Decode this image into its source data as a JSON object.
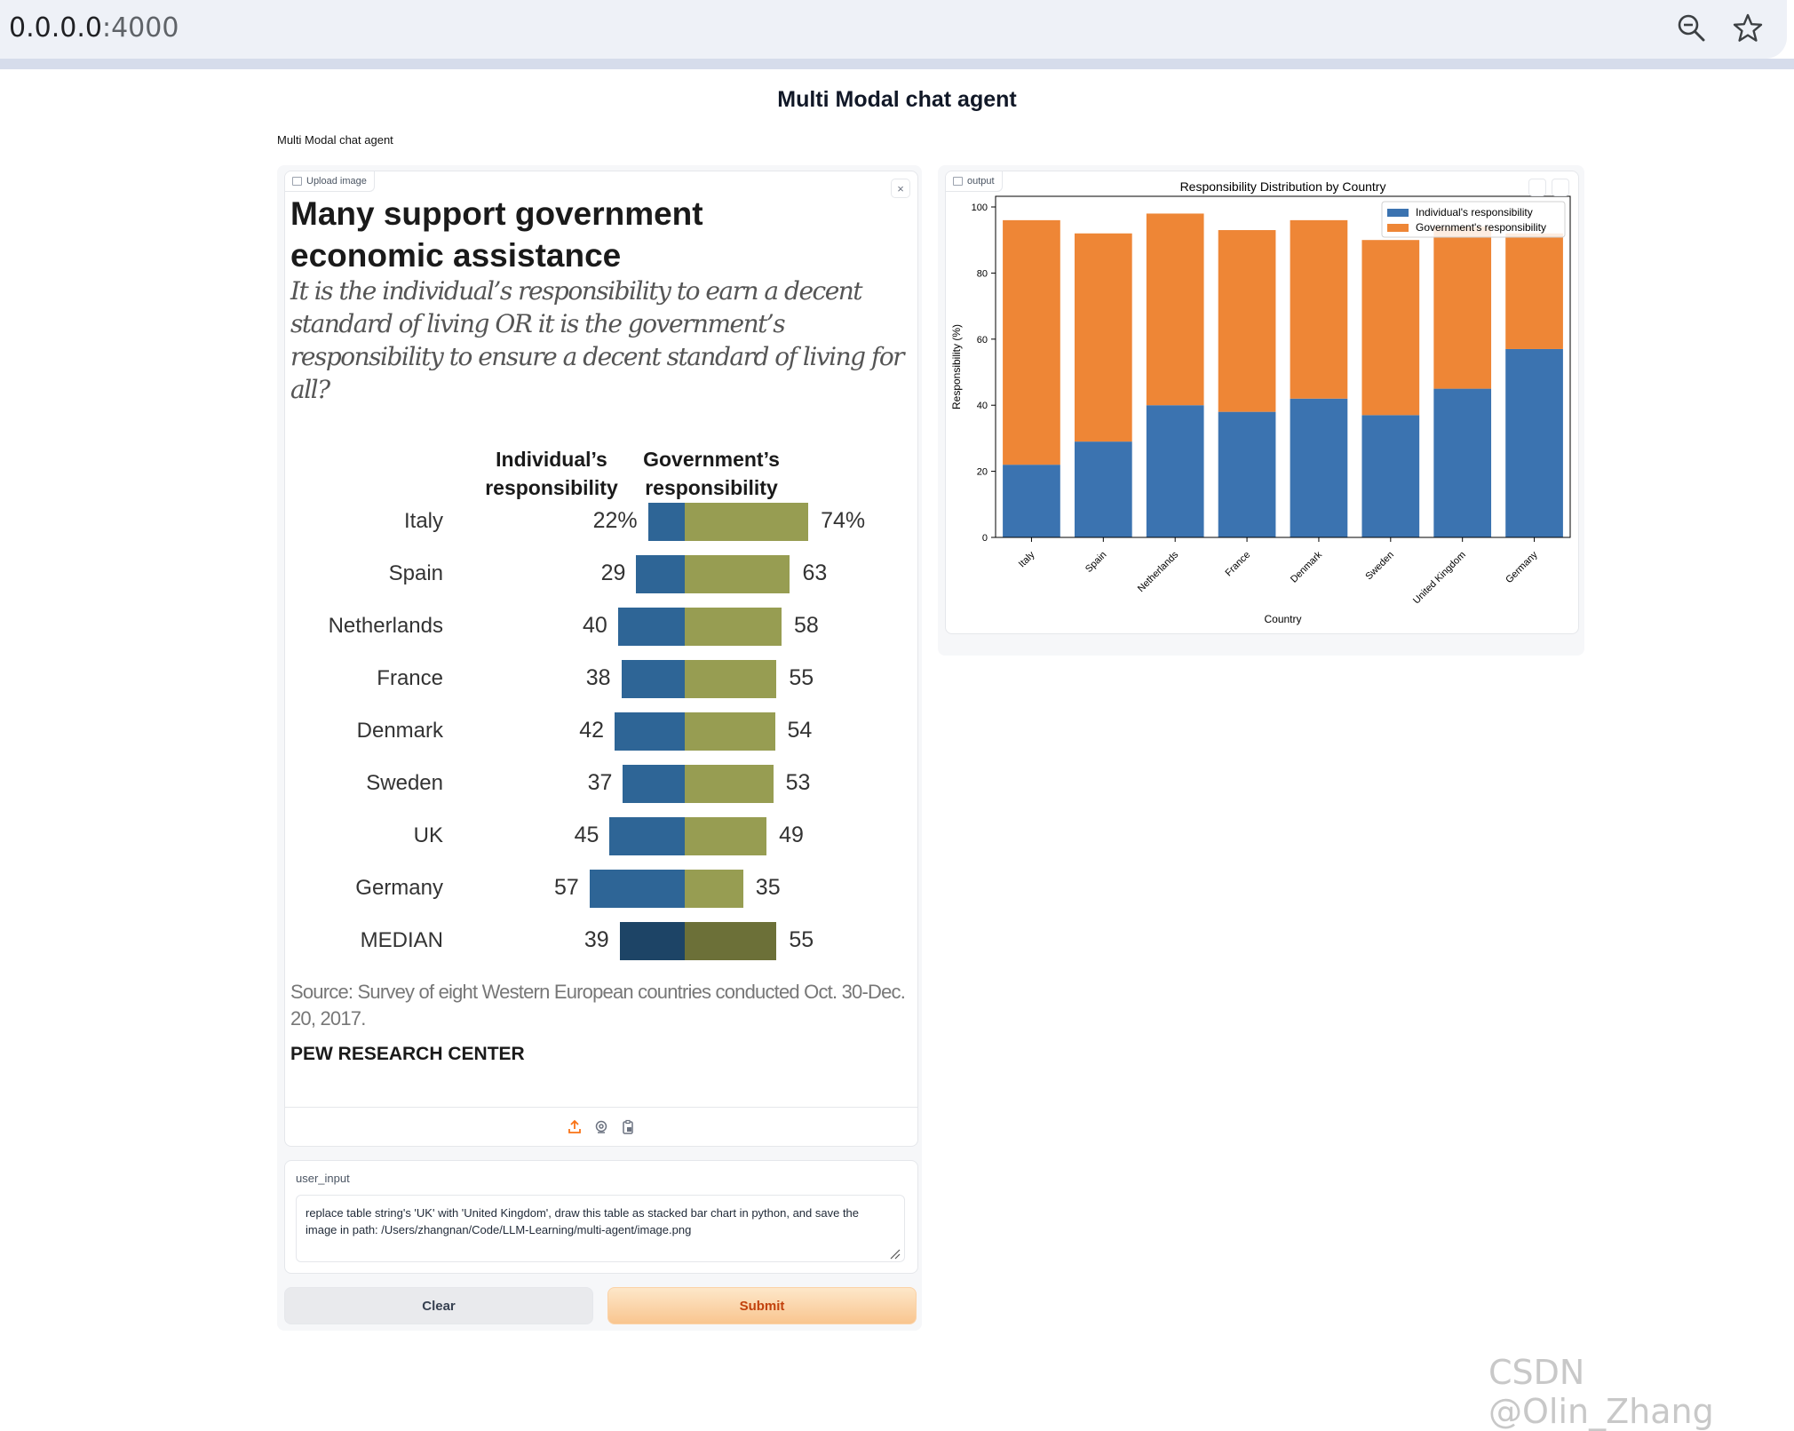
{
  "browser": {
    "url_host": "0.0.0.0",
    "url_port": ":4000",
    "zoom_icon": "magnifier-minus-icon",
    "star_icon": "star-outline-icon"
  },
  "page": {
    "title": "Multi Modal chat agent",
    "subtitle": "Multi Modal chat agent"
  },
  "upload_panel": {
    "label": "Upload image",
    "close_glyph": "×",
    "toolbar_icons": [
      "upload-icon",
      "webcam-icon",
      "clipboard-icon"
    ],
    "pew_image": {
      "title": "Many support government economic assistance",
      "subtitle": "It is the individual’s responsibility to earn a decent standard of living OR it is the government’s responsibility to ensure a decent standard of living for all?",
      "col_individual": "Individual’s responsibility",
      "col_government": "Government’s responsibility",
      "rows": [
        {
          "country": "Italy",
          "individual": 22,
          "individual_label": "22%",
          "government": 74,
          "government_label": "74%"
        },
        {
          "country": "Spain",
          "individual": 29,
          "individual_label": "29",
          "government": 63,
          "government_label": "63"
        },
        {
          "country": "Netherlands",
          "individual": 40,
          "individual_label": "40",
          "government": 58,
          "government_label": "58"
        },
        {
          "country": "France",
          "individual": 38,
          "individual_label": "38",
          "government": 55,
          "government_label": "55"
        },
        {
          "country": "Denmark",
          "individual": 42,
          "individual_label": "42",
          "government": 54,
          "government_label": "54"
        },
        {
          "country": "Sweden",
          "individual": 37,
          "individual_label": "37",
          "government": 53,
          "government_label": "53"
        },
        {
          "country": "UK",
          "individual": 45,
          "individual_label": "45",
          "government": 49,
          "government_label": "49"
        },
        {
          "country": "Germany",
          "individual": 57,
          "individual_label": "57",
          "government": 35,
          "government_label": "35"
        },
        {
          "country": "MEDIAN",
          "individual": 39,
          "individual_label": "39",
          "government": 55,
          "government_label": "55",
          "median": true
        }
      ],
      "colors": {
        "individual": "#2e6596",
        "government": "#979d52",
        "individual_median": "#1d4466",
        "government_median": "#6c7038"
      },
      "source": "Source: Survey of eight Western European countries conducted Oct. 30-Dec. 20, 2017.",
      "brand": "PEW RESEARCH CENTER"
    }
  },
  "user_input": {
    "label": "user_input",
    "value_line1": "replace table string's 'UK' with 'United Kingdom', draw this table as stacked bar chart in python, and save the",
    "value_line2": "image in path: /Users/zhangnan/Code/LLM-Learning/multi-agent/image.png"
  },
  "buttons": {
    "clear": "Clear",
    "submit": "Submit"
  },
  "output_panel": {
    "label": "output",
    "tool_icons": [
      "fullscreen-icon",
      "download-icon"
    ]
  },
  "chart_data": {
    "type": "bar",
    "stacked": true,
    "title": "Responsibility Distribution by Country",
    "xlabel": "Country",
    "ylabel": "Responsibility (%)",
    "ylim": [
      0,
      100
    ],
    "yticks": [
      0,
      20,
      40,
      60,
      80,
      100
    ],
    "categories": [
      "Italy",
      "Spain",
      "Netherlands",
      "France",
      "Denmark",
      "Sweden",
      "United Kingdom",
      "Germany"
    ],
    "series": [
      {
        "name": "Individual's responsibility",
        "values": [
          22,
          29,
          40,
          38,
          42,
          37,
          45,
          57
        ],
        "color": "#3b73b0"
      },
      {
        "name": "Government's responsibility",
        "values": [
          74,
          63,
          58,
          55,
          54,
          53,
          49,
          35
        ],
        "color": "#ee8636"
      }
    ],
    "legend": "top-right",
    "grid": false
  },
  "watermark": "CSDN @Olin_Zhang"
}
